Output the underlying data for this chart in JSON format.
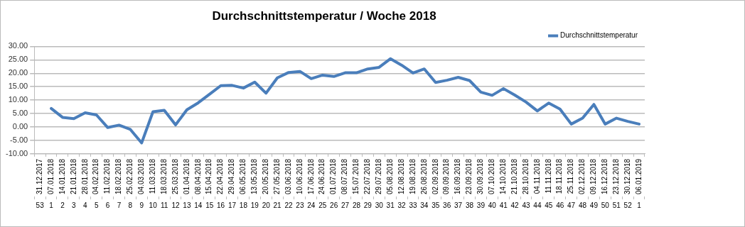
{
  "chart_data": {
    "type": "line",
    "title": "Durchschnittstemperatur / Woche 2018",
    "categories": [
      "31.12.2017\n53",
      "07.01.2018\n1",
      "14.01.2018\n2",
      "21.01.2018\n3",
      "28.01.2018\n4",
      "04.02.2018\n5",
      "11.02.2018\n6",
      "18.02.2018\n7",
      "25.02.2018\n8",
      "04.03.2018\n9",
      "11.03.2018\n10",
      "18.03.2018\n11",
      "25.03.2018\n12",
      "01.04.2018\n13",
      "08.04.2018\n14",
      "15.04.2018\n15",
      "22.04.2018\n16",
      "29.04.2018\n17",
      "06.05.2018\n18",
      "13.05.2018\n19",
      "20.05.2018\n20",
      "27.05.2018\n21",
      "03.06.2018\n22",
      "10.06.2018\n23",
      "17.06.2018\n24",
      "24.06.2018\n25",
      "01.07.2018\n26",
      "08.07.2018\n27",
      "15.07.2018\n28",
      "22.07.2018\n29",
      "29.07.2018\n30",
      "05.08.2018\n31",
      "12.08.2018\n32",
      "19.08.2018\n33",
      "26.08.2018\n34",
      "02.09.2018\n35",
      "09.09.2018\n36",
      "16.09.2018\n37",
      "23.09.2018\n38",
      "30.09.2018\n39",
      "07.10.2018\n40",
      "14.10.2018\n41",
      "21.10.2018\n42",
      "28.10.2018\n43",
      "04.11.2018\n44",
      "11.11.2018\n45",
      "18.11.2018\n46",
      "25.11.2018\n47",
      "02.12.2018\n48",
      "09.12.2018\n49",
      "16.12.2018\n50",
      "23.12.2018\n51",
      "30.12.2018\n52",
      "06.01.2019\n1"
    ],
    "series": [
      {
        "name": "Durchschnittstemperatur",
        "color": "#4a7ebb",
        "values": [
          null,
          6.9,
          3.6,
          3.1,
          5.3,
          4.5,
          -0.2,
          0.7,
          -0.9,
          -5.9,
          5.7,
          6.2,
          0.8,
          6.4,
          9.0,
          12.2,
          15.4,
          15.5,
          14.5,
          16.7,
          12.6,
          18.3,
          20.3,
          20.7,
          18.0,
          19.3,
          18.8,
          20.2,
          20.2,
          21.6,
          22.2,
          25.4,
          23.0,
          20.1,
          21.6,
          16.6,
          17.4,
          18.5,
          17.3,
          13.0,
          11.8,
          14.3,
          11.9,
          9.3,
          6.0,
          8.9,
          6.7,
          1.1,
          3.3,
          8.4,
          1.1,
          3.3,
          2.1,
          1.1
        ]
      }
    ],
    "ylim": [
      -10,
      30
    ],
    "yticks": [
      {
        "value": -10,
        "label": "-10.00"
      },
      {
        "value": -5,
        "label": "-5.00"
      },
      {
        "value": 0,
        "label": "0.00"
      },
      {
        "value": 5,
        "label": "5.00"
      },
      {
        "value": 10,
        "label": "10.00"
      },
      {
        "value": 15,
        "label": "15.00"
      },
      {
        "value": 20,
        "label": "20.00"
      },
      {
        "value": 25,
        "label": "25.00"
      },
      {
        "value": 30,
        "label": "30.00"
      }
    ],
    "grid": "y",
    "legend": "top right",
    "marker": "none",
    "line_style": "solid"
  }
}
